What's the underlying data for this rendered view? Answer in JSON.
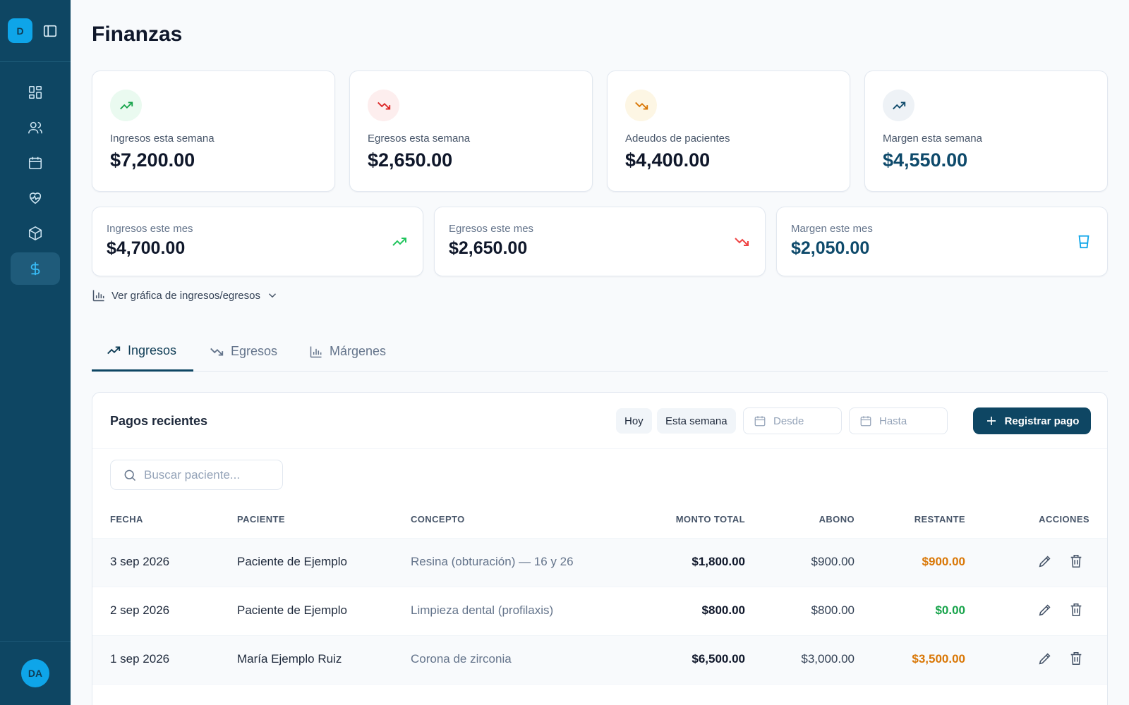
{
  "sidebar": {
    "logo": "D",
    "user_initials": "DA",
    "items": [
      {
        "icon": "dashboard-icon"
      },
      {
        "icon": "users-icon"
      },
      {
        "icon": "calendar-icon"
      },
      {
        "icon": "heart-pulse-icon"
      },
      {
        "icon": "package-icon"
      },
      {
        "icon": "dollar-icon",
        "active": true
      }
    ]
  },
  "page": {
    "title": "Finanzas"
  },
  "weekly": [
    {
      "label": "Ingresos esta semana",
      "value": "$7,200.00"
    },
    {
      "label": "Egresos esta semana",
      "value": "$2,650.00"
    },
    {
      "label": "Adeudos de pacientes",
      "value": "$4,400.00"
    },
    {
      "label": "Margen esta semana",
      "value": "$4,550.00"
    }
  ],
  "monthly": [
    {
      "label": "Ingresos este mes",
      "value": "$4,700.00"
    },
    {
      "label": "Egresos este mes",
      "value": "$2,650.00"
    },
    {
      "label": "Margen este mes",
      "value": "$2,050.00"
    }
  ],
  "chart_toggle": "Ver gráfica de ingresos/egresos",
  "tabs": [
    {
      "label": "Ingresos",
      "active": true
    },
    {
      "label": "Egresos"
    },
    {
      "label": "Márgenes"
    }
  ],
  "payments": {
    "title": "Pagos recientes",
    "filter_today": "Hoy",
    "filter_week": "Esta semana",
    "from_placeholder": "Desde",
    "to_placeholder": "Hasta",
    "register_label": "Registrar pago",
    "search_placeholder": "Buscar paciente...",
    "columns": {
      "date": "FECHA",
      "patient": "PACIENTE",
      "concept": "CONCEPTO",
      "total": "MONTO TOTAL",
      "paid": "ABONO",
      "remaining": "RESTANTE",
      "actions": "ACCIONES"
    },
    "rows": [
      {
        "date": "3 sep 2026",
        "patient": "Paciente de Ejemplo",
        "concept": "Resina (obturación) — 16 y 26",
        "total": "$1,800.00",
        "paid": "$900.00",
        "remaining": "$900.00"
      },
      {
        "date": "2 sep 2026",
        "patient": "Paciente de Ejemplo",
        "concept": "Limpieza dental (profilaxis)",
        "total": "$800.00",
        "paid": "$800.00",
        "remaining": "$0.00"
      },
      {
        "date": "1 sep 2026",
        "patient": "María Ejemplo Ruiz",
        "concept": "Corona de zirconia",
        "total": "$6,500.00",
        "paid": "$3,000.00",
        "remaining": "$3,500.00"
      }
    ]
  },
  "colors": {
    "sidebar": "#0e4663",
    "accent": "#0ea5e9",
    "positive": "#16a34a",
    "negative": "#dc2626",
    "warning": "#d97706",
    "margin_text": "#0e4a6b"
  }
}
